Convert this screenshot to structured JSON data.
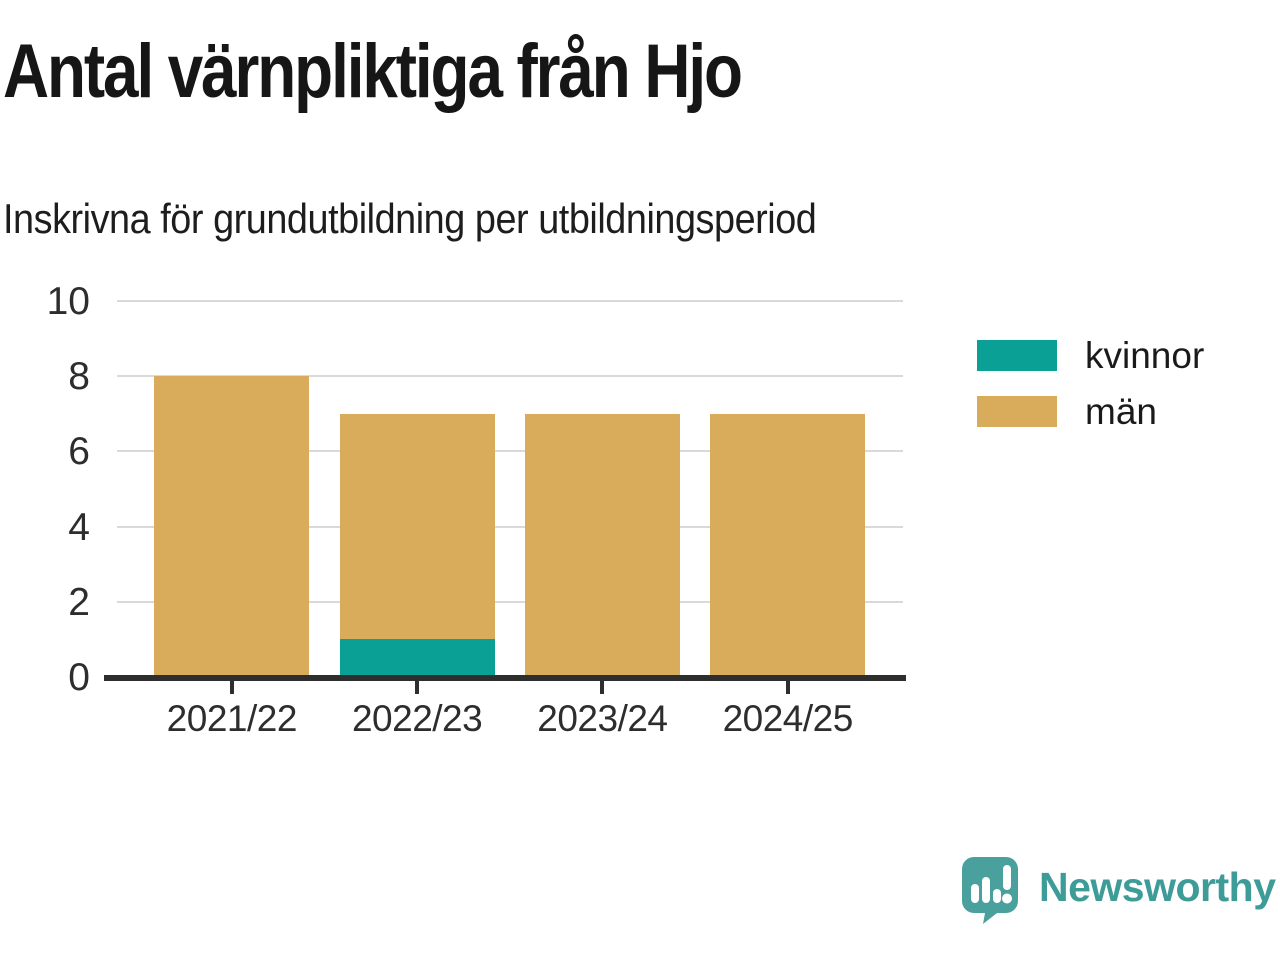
{
  "title": "Antal värnpliktiga från Hjo",
  "subtitle": "Inskrivna för grundutbildning per utbildningsperiod",
  "chart_data": {
    "type": "bar",
    "stacked": true,
    "title": "Antal värnpliktiga från Hjo",
    "subtitle": "Inskrivna för grundutbildning per utbildningsperiod",
    "categories": [
      "2021/22",
      "2022/23",
      "2023/24",
      "2024/25"
    ],
    "series": [
      {
        "name": "kvinnor",
        "color": "#0aa096",
        "values": [
          0,
          1,
          0,
          0
        ]
      },
      {
        "name": "män",
        "color": "#d9ac5c",
        "values": [
          8,
          6,
          7,
          7
        ]
      }
    ],
    "totals": [
      8,
      7,
      7,
      7
    ],
    "xlabel": "",
    "ylabel": "",
    "ylim": [
      0,
      10
    ],
    "yticks": [
      0,
      2,
      4,
      6,
      8,
      10
    ],
    "grid": true,
    "legend_position": "right",
    "colors": {
      "kvinnor": "#0aa096",
      "män": "#d9ac5c",
      "gridline": "#d9d9d9",
      "axis": "#2e2e2e"
    }
  },
  "legend": {
    "items": [
      {
        "label": "kvinnor",
        "color": "#0aa096"
      },
      {
        "label": "män",
        "color": "#d9ac5c"
      }
    ]
  },
  "branding": {
    "logo_text": "Newsworthy",
    "logo_color": "#3d9b98",
    "logo_icon": "newsworthy-speech-bubble-chart-icon",
    "logo_icon_color": "#4aa09d"
  }
}
